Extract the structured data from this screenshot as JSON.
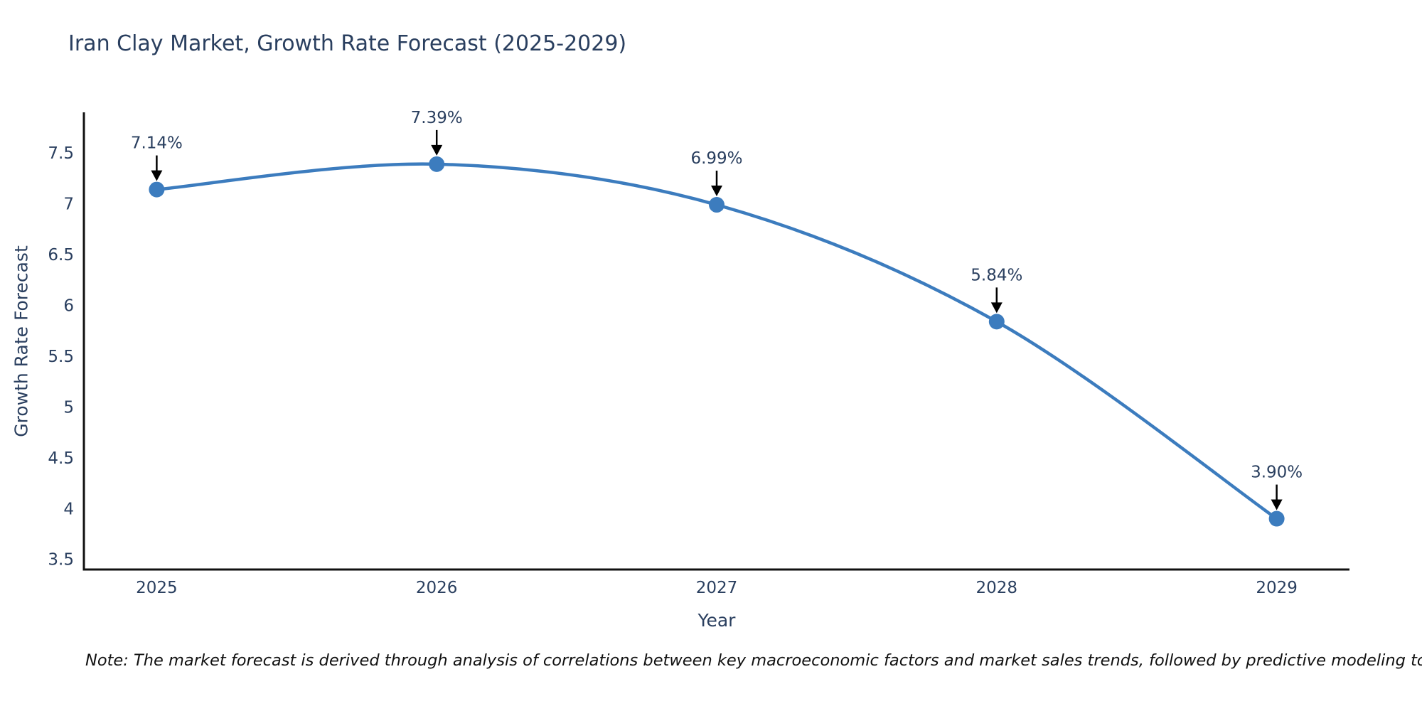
{
  "note": "Note: The market forecast is derived through analysis of correlations between key macroeconomic factors and market sales trends, followed by predictive modeling to project future sales",
  "chart_data": {
    "type": "line",
    "title": "Iran Clay Market, Growth Rate Forecast (2025-2029)",
    "xlabel": "Year",
    "ylabel": "Growth Rate Forecast",
    "x": [
      2025,
      2026,
      2027,
      2028,
      2029
    ],
    "series": [
      {
        "name": "Growth Rate Forecast",
        "values": [
          7.14,
          7.39,
          6.99,
          5.84,
          3.9
        ]
      }
    ],
    "point_labels": [
      "7.14%",
      "7.39%",
      "6.99%",
      "5.84%",
      "3.90%"
    ],
    "yticks": [
      3.5,
      4,
      4.5,
      5,
      5.5,
      6,
      6.5,
      7,
      7.5
    ],
    "xticks": [
      2025,
      2026,
      2027,
      2028,
      2029
    ],
    "xlim": [
      2024.74,
      2029.26
    ],
    "ylim": [
      3.4,
      7.9
    ],
    "grid": false,
    "legend_position": "none",
    "line_shape": "spline",
    "annotations_have_arrows": true,
    "colors": {
      "line": "#3c7cbe",
      "marker": "#3c7cbe",
      "axis_text": "#2a3f5f",
      "title_text": "#2a3f5f",
      "spine": "#111111",
      "arrow": "#000000",
      "background": "#ffffff"
    }
  }
}
